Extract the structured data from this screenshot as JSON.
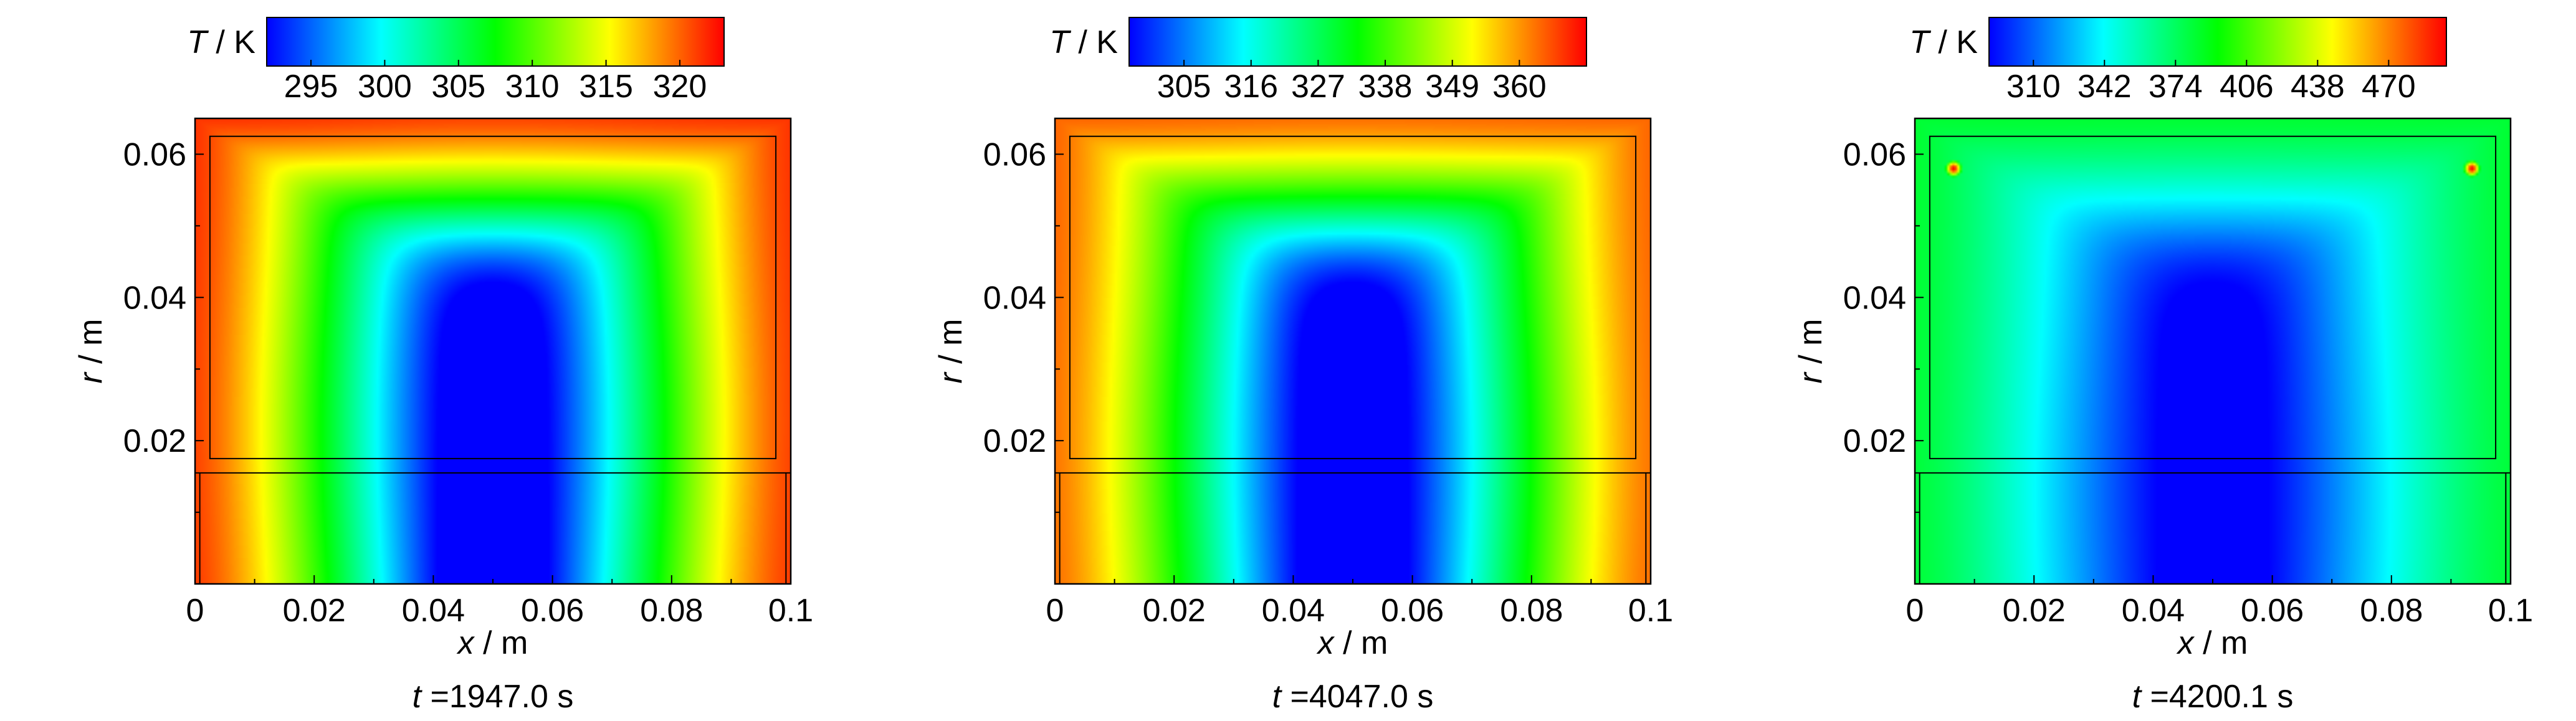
{
  "chart_data": [
    {
      "type": "heatmap",
      "title": "",
      "colorbar": {
        "label_symbol": "T",
        "label_unit": "/ K",
        "ticks": [
          "295",
          "300",
          "305",
          "310",
          "315",
          "320"
        ],
        "range": [
          292,
          323
        ],
        "colors": [
          "#0000ff",
          "#00ffff",
          "#00ff00",
          "#ffff00",
          "#ff0000"
        ]
      },
      "xlabel_symbol": "x",
      "xlabel_unit": "/ m",
      "ylabel_symbol": "r",
      "ylabel_unit": "/ m",
      "xlim": [
        0,
        0.1
      ],
      "ylim": [
        0,
        0.065
      ],
      "x_ticks": [
        "0",
        "0.02",
        "0.04",
        "0.06",
        "0.08",
        "0.1"
      ],
      "y_ticks": [
        "0.02",
        "0.04",
        "0.06"
      ],
      "caption_symbol": "t",
      "caption_value": "=1947.0 s",
      "field": {
        "edge_level": 0.95,
        "center_level": 0.0,
        "cold_center_x": 0.05,
        "cold_center_r": 0.022,
        "hot_spots": []
      }
    },
    {
      "type": "heatmap",
      "title": "",
      "colorbar": {
        "label_symbol": "T",
        "label_unit": "/ K",
        "ticks": [
          "305",
          "316",
          "327",
          "338",
          "349",
          "360"
        ],
        "range": [
          296,
          371
        ],
        "colors": [
          "#0000ff",
          "#00ffff",
          "#00ff00",
          "#ffff00",
          "#ff0000"
        ]
      },
      "xlabel_symbol": "x",
      "xlabel_unit": "/ m",
      "ylabel_symbol": "r",
      "ylabel_unit": "/ m",
      "xlim": [
        0,
        0.1
      ],
      "ylim": [
        0,
        0.065
      ],
      "x_ticks": [
        "0",
        "0.02",
        "0.04",
        "0.06",
        "0.08",
        "0.1"
      ],
      "y_ticks": [
        "0.02",
        "0.04",
        "0.06"
      ],
      "caption_symbol": "t",
      "caption_value": "=4047.0 s",
      "field": {
        "edge_level": 0.9,
        "center_level": 0.0,
        "cold_center_x": 0.05,
        "cold_center_r": 0.018,
        "hot_spots": []
      }
    },
    {
      "type": "heatmap",
      "title": "",
      "colorbar": {
        "label_symbol": "T",
        "label_unit": "/ K",
        "ticks": [
          "310",
          "342",
          "374",
          "406",
          "438",
          "470"
        ],
        "range": [
          290,
          496
        ],
        "colors": [
          "#0000ff",
          "#00ffff",
          "#00ff00",
          "#ffff00",
          "#ff0000"
        ]
      },
      "xlabel_symbol": "x",
      "xlabel_unit": "/ m",
      "ylabel_symbol": "r",
      "ylabel_unit": "/ m",
      "xlim": [
        0,
        0.1
      ],
      "ylim": [
        0,
        0.065
      ],
      "x_ticks": [
        "0",
        "0.02",
        "0.04",
        "0.06",
        "0.08",
        "0.1"
      ],
      "y_ticks": [
        "0.02",
        "0.04",
        "0.06"
      ],
      "caption_symbol": "t",
      "caption_value": "=4200.1 s",
      "field": {
        "edge_level": 0.45,
        "center_level": 0.0,
        "cold_center_x": 0.05,
        "cold_center_r": 0.012,
        "hot_spots": [
          {
            "x": 0.0065,
            "r": 0.058,
            "level": 1.0
          },
          {
            "x": 0.0935,
            "r": 0.058,
            "level": 1.0
          }
        ]
      }
    }
  ]
}
